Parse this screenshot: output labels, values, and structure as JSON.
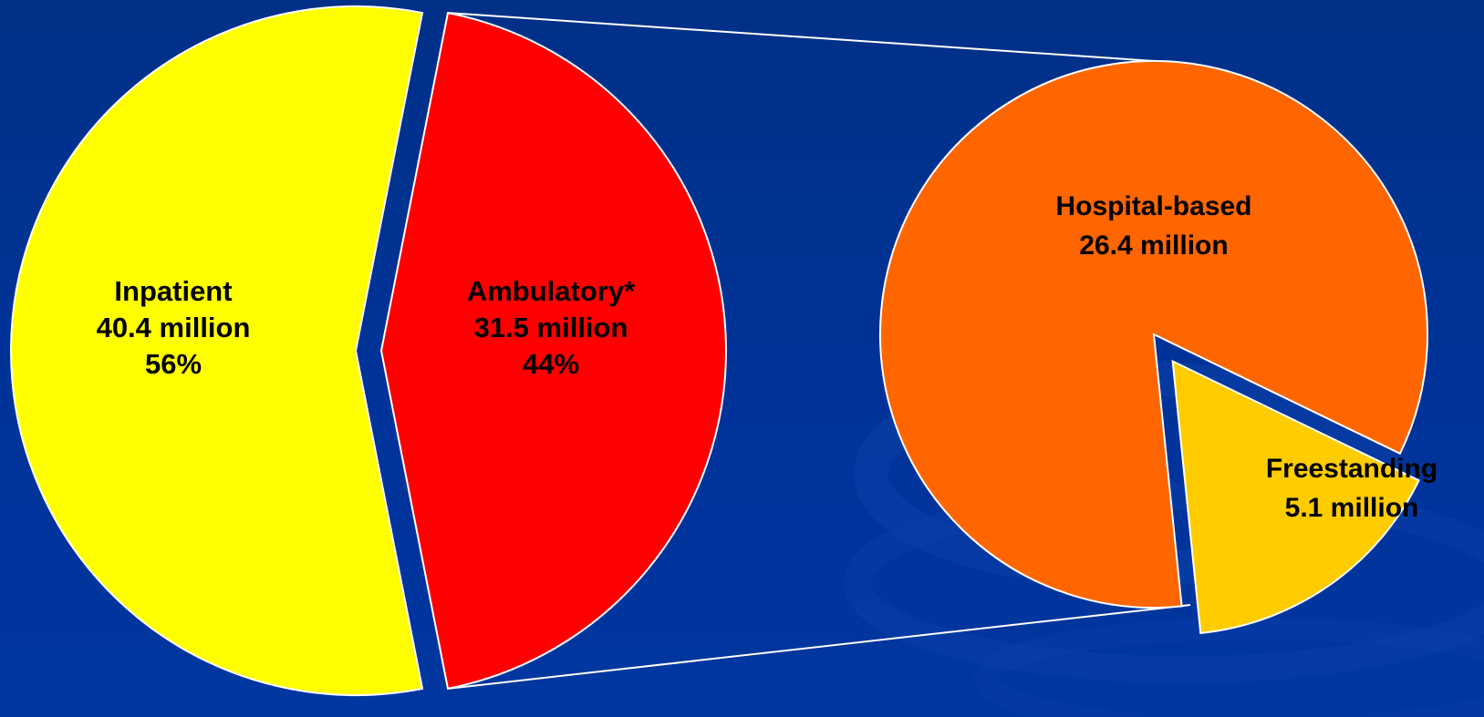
{
  "chart_data": [
    {
      "type": "pie",
      "title": "",
      "slices": [
        {
          "label": "Inpatient",
          "value": 40.4,
          "value_text": "40.4 million",
          "percent_text": "56%",
          "color": "#FFFF00",
          "exploded": false
        },
        {
          "label": "Ambulatory*",
          "value": 31.5,
          "value_text": "31.5 million",
          "percent_text": "44%",
          "color": "#FF0000",
          "exploded": true
        }
      ]
    },
    {
      "type": "pie",
      "title": "",
      "breakdown_of": "Ambulatory*",
      "slices": [
        {
          "label": "Hospital-based",
          "value": 26.4,
          "value_text": "26.4 million",
          "color": "#FF6600",
          "exploded": false
        },
        {
          "label": "Freestanding",
          "value": 5.1,
          "value_text": "5.1 million",
          "color": "#FFCC00",
          "exploded": true
        }
      ]
    }
  ],
  "colors": {
    "background": "#003399",
    "slice_border": "#FFFFFF",
    "label_text": "#000000"
  }
}
